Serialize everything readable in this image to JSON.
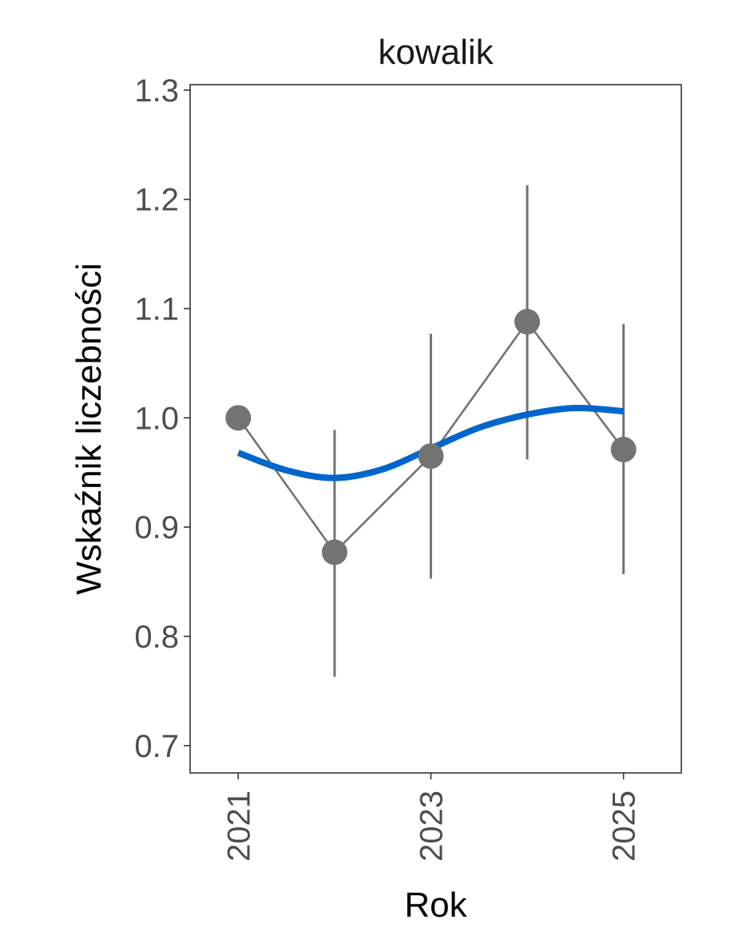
{
  "chart_data": {
    "type": "line",
    "title": "kowalik",
    "xlabel": "Rok",
    "ylabel": "Wskaźnik liczebności",
    "xlim": [
      2020.5,
      2025.6
    ],
    "ylim": [
      0.675,
      1.305
    ],
    "x_ticks": [
      2021,
      2023,
      2025
    ],
    "y_ticks": [
      0.7,
      0.8,
      0.9,
      1.0,
      1.1,
      1.2,
      1.3
    ],
    "y_tick_labels": [
      "0.7",
      "0.8",
      "0.9",
      "1.0",
      "1.1",
      "1.2",
      "1.3"
    ],
    "x_tick_labels": [
      "2021",
      "2023",
      "2025"
    ],
    "grid": false,
    "series": [
      {
        "kind": "points_with_errorbars",
        "color": "#737373",
        "x": [
          2021,
          2022,
          2023,
          2024,
          2025
        ],
        "y": [
          1.0,
          0.877,
          0.965,
          1.088,
          0.971
        ],
        "lower": [
          1.0,
          0.763,
          0.853,
          0.962,
          0.857
        ],
        "upper": [
          1.0,
          0.989,
          1.077,
          1.213,
          1.086
        ]
      },
      {
        "kind": "smooth_trend",
        "color": "#0066cc",
        "x": [
          2021,
          2021.5,
          2022,
          2022.5,
          2023,
          2023.5,
          2024,
          2024.5,
          2025
        ],
        "y": [
          0.968,
          0.952,
          0.945,
          0.953,
          0.972,
          0.991,
          1.003,
          1.009,
          1.006
        ]
      }
    ]
  }
}
